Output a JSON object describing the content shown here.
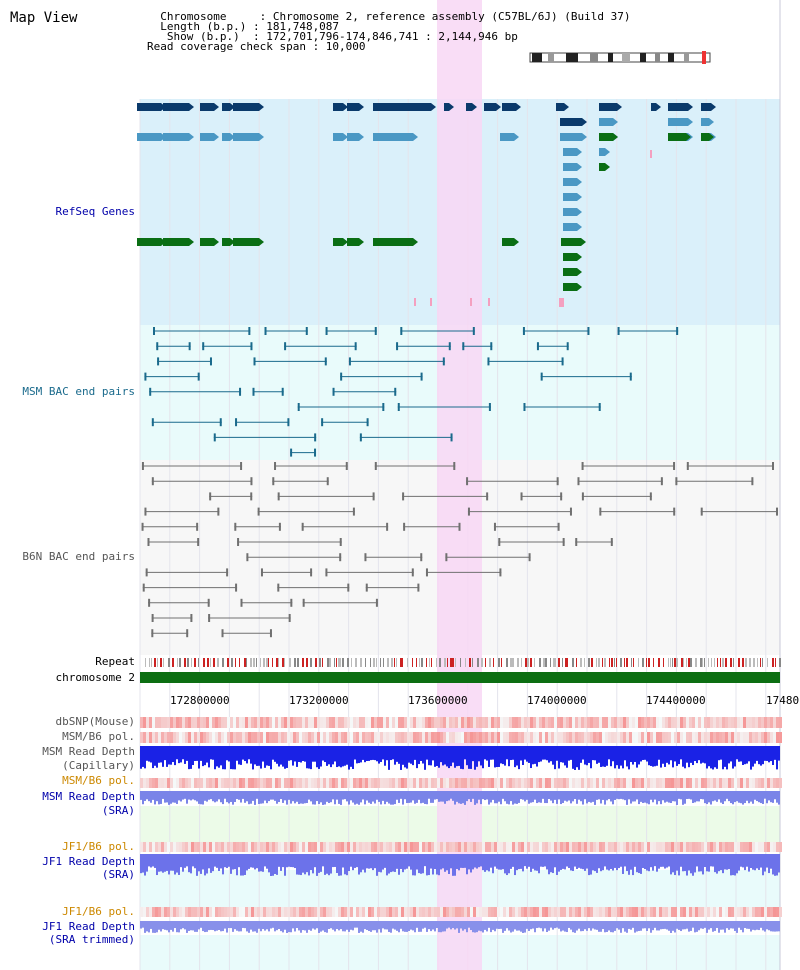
{
  "title": "Map View",
  "header": {
    "lines": [
      "  Chromosome     : Chromosome 2, reference assembly (C57BL/6J) (Build 37)",
      "  Length (b.p.) : 181,748,087",
      "   Show (b.p.)  : 172,701,796-174,846,741 : 2,144,946 bp",
      "Read coverage check span : 10,000"
    ]
  },
  "tracks": {
    "refseq": "RefSeq Genes",
    "msm_bac": "MSM BAC end pairs",
    "b6n_bac": "B6N BAC end pairs",
    "repeat": "Repeat",
    "chromosome": "chromosome 2",
    "dbsnp": "dbSNP(Mouse)",
    "msm_b6_pol_1": "MSM/B6 pol.",
    "msm_read_depth_cap_1": "MSM Read Depth",
    "msm_read_depth_cap_2": "(Capillary)",
    "msm_b6_pol_2": "MSM/B6 pol.",
    "msm_read_depth_sra_1": "MSM Read Depth",
    "msm_read_depth_sra_2": "(SRA)",
    "jf1_b6_pol_1": "JF1/B6 pol.",
    "jf1_read_depth_sra_1": "JF1 Read Depth",
    "jf1_read_depth_sra_2": "(SRA)",
    "jf1_b6_pol_2": "JF1/B6 pol.",
    "jf1_read_depth_trim_1": "JF1 Read Depth",
    "jf1_read_depth_trim_2": "(SRA trimmed)"
  },
  "axis": {
    "ticks": [
      "172800000",
      "173200000",
      "173600000",
      "174000000",
      "174400000",
      "17480"
    ]
  },
  "colors": {
    "refseq_bg": "#daf0fa",
    "bac_bg": "#e9fbfb",
    "highlight": "#f8d7f4",
    "gene_dark": "#0a3a6b",
    "gene_mid": "#4a98c4",
    "gene_green": "#0a6e14",
    "bac_msm": "#1a6a8c",
    "bac_b6n": "#707070",
    "chrom": "#0c6e12",
    "label_blue": "#0000aa",
    "label_orange": "#cc8800"
  }
}
